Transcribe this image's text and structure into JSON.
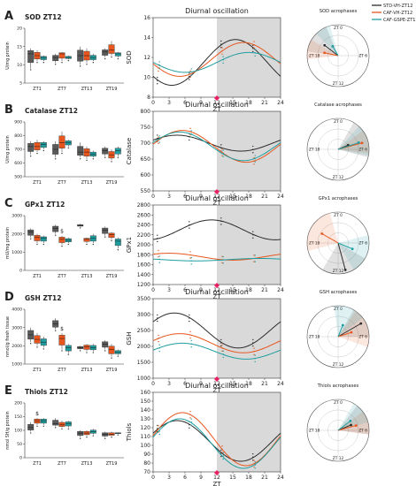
{
  "colors": {
    "std": "#2b2b2b",
    "caf": "#e8561e",
    "gspe": "#1f9ea0",
    "stdBox": "#5a5a5a",
    "shade": "#d9d9d9",
    "zt12": "#e91e63"
  },
  "legend": {
    "items": [
      {
        "label": "STD-VH-ZT12",
        "color": "#2b2b2b"
      },
      {
        "label": "CAF-VH-ZT12",
        "color": "#e8561e"
      },
      {
        "label": "CAF-GSPE-ZT12",
        "color": "#1f9ea0"
      }
    ]
  },
  "chart_data": [
    {
      "panel": "A",
      "title": "SOD ZT12",
      "type": "bar",
      "ylabel": "U/mg protein",
      "ylim": [
        5,
        20
      ],
      "yticks": [
        5,
        10,
        15,
        20
      ],
      "categories": [
        "ZT1",
        "ZT7",
        "ZT13",
        "ZT19"
      ],
      "series": [
        {
          "name": "STD-VH-ZT12",
          "values": [
            [
              9,
              13,
              14.5
            ],
            [
              10.5,
              12,
              13
            ],
            [
              10,
              12.5,
              15
            ],
            [
              12,
              13.5,
              14.5
            ]
          ]
        },
        {
          "name": "CAF-VH-ZT12",
          "values": [
            [
              11,
              12.5,
              14
            ],
            [
              11,
              13,
              13.5
            ],
            [
              10.5,
              12.5,
              14.5
            ],
            [
              12.5,
              14,
              16.5
            ]
          ]
        },
        {
          "name": "CAF-GSPE-ZT12",
          "values": [
            [
              11,
              12,
              12.5
            ],
            [
              11.5,
              12,
              12.5
            ],
            [
              11,
              12,
              13
            ],
            [
              12,
              13,
              13.5
            ]
          ]
        }
      ],
      "annotations": [],
      "osc": {
        "title": "Diurnal oscillation",
        "ylabel": "SOD",
        "xlabel": "ZT",
        "ylim": [
          8,
          16
        ],
        "yticks": [
          8,
          10,
          12,
          14,
          16
        ],
        "shade_from": 12,
        "curves": [
          {
            "name": "STD-VH-ZT12",
            "mesor": 11.5,
            "amp": 2.3,
            "peak": 15.5
          },
          {
            "name": "CAF-VH-ZT12",
            "mesor": 11.8,
            "amp": 1.7,
            "peak": 17.0
          },
          {
            "name": "CAF-GSPE-ZT12",
            "mesor": 11.5,
            "amp": 1.0,
            "peak": 18.0
          }
        ]
      },
      "polar": {
        "title": "SOD acrophases",
        "labels": [
          "ZT 0",
          "ZT 6",
          "ZT 12",
          "ZT 18"
        ],
        "vectors": [
          {
            "name": "STD-VH-ZT12",
            "zt": 20.5,
            "r": 0.55,
            "spread": 4
          },
          {
            "name": "CAF-VH-ZT12",
            "zt": 18.8,
            "r": 0.45,
            "spread": 2.5
          },
          {
            "name": "CAF-GSPE-ZT12",
            "zt": 22.0,
            "r": 0.35,
            "spread": 2
          }
        ]
      }
    },
    {
      "panel": "B",
      "title": "Catalase ZT12",
      "type": "bar",
      "ylabel": "U/mg protein",
      "ylim": [
        500,
        900
      ],
      "yticks": [
        500,
        600,
        700,
        800,
        900
      ],
      "categories": [
        "ZT1",
        "ZT7",
        "ZT13",
        "ZT19"
      ],
      "series": [
        {
          "name": "STD-VH-ZT12",
          "values": [
            [
              660,
              720,
              760
            ],
            [
              640,
              700,
              760
            ],
            [
              640,
              680,
              750
            ],
            [
              650,
              690,
              720
            ]
          ]
        },
        {
          "name": "CAF-VH-ZT12",
          "values": [
            [
              680,
              720,
              770
            ],
            [
              680,
              750,
              830
            ],
            [
              630,
              680,
              720
            ],
            [
              620,
              660,
              700
            ]
          ]
        },
        {
          "name": "CAF-GSPE-ZT12",
          "values": [
            [
              700,
              735,
              760
            ],
            [
              720,
              750,
              770
            ],
            [
              640,
              665,
              690
            ],
            [
              650,
              690,
              720
            ]
          ]
        }
      ],
      "annotations": [],
      "osc": {
        "title": "Diurnal oscillation",
        "ylabel": "Catalase",
        "xlabel": "ZT",
        "ylim": [
          550,
          800
        ],
        "yticks": [
          550,
          600,
          650,
          700,
          750,
          800
        ],
        "shade_from": 12,
        "curves": [
          {
            "name": "STD-VH-ZT12",
            "mesor": 700,
            "amp": 25,
            "peak": 4.5
          },
          {
            "name": "CAF-VH-ZT12",
            "mesor": 690,
            "amp": 50,
            "peak": 5.5
          },
          {
            "name": "CAF-GSPE-ZT12",
            "mesor": 690,
            "amp": 45,
            "peak": 5.0
          }
        ]
      },
      "polar": {
        "title": "Catalase acrophases",
        "labels": [
          "ZT 0",
          "ZT 6",
          "ZT 12",
          "ZT 18"
        ],
        "vectors": [
          {
            "name": "STD-VH-ZT12",
            "zt": 4.5,
            "r": 0.35,
            "spread": 5
          },
          {
            "name": "CAF-VH-ZT12",
            "zt": 5.0,
            "r": 0.8,
            "spread": 3
          },
          {
            "name": "CAF-GSPE-ZT12",
            "zt": 4.8,
            "r": 0.7,
            "spread": 4
          }
        ]
      }
    },
    {
      "panel": "C",
      "title": "GPx1 ZT12",
      "type": "bar",
      "ylabel": "mU/mg protein",
      "ylim": [
        0,
        3000
      ],
      "yticks": [
        0,
        1000,
        2000,
        3000
      ],
      "categories": [
        "ZT1",
        "ZT7",
        "ZT13",
        "ZT19"
      ],
      "series": [
        {
          "name": "STD-VH-ZT12",
          "values": [
            [
              1800,
              2100,
              2300
            ],
            [
              2000,
              2300,
              2500
            ],
            [
              2400,
              2450,
              2550
            ],
            [
              1900,
              2200,
              2400
            ]
          ]
        },
        {
          "name": "CAF-VH-ZT12",
          "values": [
            [
              1500,
              1800,
              2000
            ],
            [
              1400,
              1700,
              1900
            ],
            [
              1500,
              1700,
              1800
            ],
            [
              1700,
              1950,
              2100
            ]
          ]
        },
        {
          "name": "CAF-GSPE-ZT12",
          "values": [
            [
              1500,
              1750,
              1900
            ],
            [
              1500,
              1650,
              1800
            ],
            [
              1500,
              1750,
              2000
            ],
            [
              1200,
              1600,
              1800
            ]
          ]
        }
      ],
      "annotations": [
        {
          "text": "$",
          "group": 1,
          "series": 1
        }
      ],
      "osc": {
        "title": "Diurnal oscillation",
        "ylabel": "GPx1",
        "xlabel": "ZT",
        "ylim": [
          1200,
          2800
        ],
        "yticks": [
          1200,
          1400,
          1600,
          1800,
          2000,
          2200,
          2400,
          2600,
          2800
        ],
        "shade_from": 12,
        "curves": [
          {
            "name": "STD-VH-ZT12",
            "mesor": 2300,
            "amp": 200,
            "peak": 11.0
          },
          {
            "name": "CAF-VH-ZT12",
            "mesor": 1760,
            "amp": 70,
            "peak": 3.0
          },
          {
            "name": "CAF-GSPE-ZT12",
            "mesor": 1700,
            "amp": 25,
            "peak": 20.0
          }
        ]
      },
      "polar": {
        "title": "GPx1 acrophases",
        "labels": [
          "ZT 0",
          "ZT 6",
          "ZT 12",
          "ZT 18"
        ],
        "vectors": [
          {
            "name": "STD-VH-ZT12",
            "zt": 11.0,
            "r": 0.9,
            "spread": 6
          },
          {
            "name": "CAF-VH-ZT12",
            "zt": 20.0,
            "r": 0.6,
            "spread": 6
          },
          {
            "name": "CAF-GSPE-ZT12",
            "zt": 7.5,
            "r": 0.5,
            "spread": 5
          }
        ]
      }
    },
    {
      "panel": "D",
      "title": "GSH ZT12",
      "type": "bar",
      "ylabel": "nmol/g fresh tissue",
      "ylim": [
        1000,
        4000
      ],
      "yticks": [
        1000,
        2000,
        3000,
        4000
      ],
      "categories": [
        "ZT1",
        "ZT7",
        "ZT13",
        "ZT19"
      ],
      "series": [
        {
          "name": "STD-VH-ZT12",
          "values": [
            [
              2200,
              2600,
              3000
            ],
            [
              2900,
              3200,
              3500
            ],
            [
              1800,
              1900,
              2000
            ],
            [
              1800,
              2100,
              2300
            ]
          ]
        },
        {
          "name": "CAF-VH-ZT12",
          "values": [
            [
              2000,
              2350,
              2700
            ],
            [
              1800,
              2400,
              2700
            ],
            [
              1700,
              1950,
              2100
            ],
            [
              1400,
              1800,
              2100
            ]
          ]
        },
        {
          "name": "CAF-GSPE-ZT12",
          "values": [
            [
              1900,
              2200,
              2500
            ],
            [
              1600,
              1900,
              2100
            ],
            [
              1700,
              1900,
              2100
            ],
            [
              1500,
              1650,
              1800
            ]
          ]
        }
      ],
      "annotations": [
        {
          "text": "$",
          "group": 1,
          "series": 1
        }
      ],
      "osc": {
        "title": "Diurnal oscillation",
        "ylabel": "GSH",
        "xlabel": "ZT",
        "ylim": [
          1000,
          3500
        ],
        "yticks": [
          1000,
          1500,
          2000,
          2500,
          3000,
          3500
        ],
        "shade_from": 12,
        "curves": [
          {
            "name": "STD-VH-ZT12",
            "mesor": 2500,
            "amp": 550,
            "peak": 4.0
          },
          {
            "name": "CAF-VH-ZT12",
            "mesor": 2100,
            "amp": 300,
            "peak": 5.0
          },
          {
            "name": "CAF-GSPE-ZT12",
            "mesor": 1850,
            "amp": 250,
            "peak": 5.5
          }
        ]
      },
      "polar": {
        "title": "GSH acrophases",
        "labels": [
          "ZT 0",
          "ZT 6",
          "ZT 12",
          "ZT 18"
        ],
        "vectors": [
          {
            "name": "STD-VH-ZT12",
            "zt": 4.0,
            "r": 0.85,
            "spread": 4
          },
          {
            "name": "CAF-VH-ZT12",
            "zt": 4.8,
            "r": 0.45,
            "spread": 5
          },
          {
            "name": "CAF-GSPE-ZT12",
            "zt": 1.5,
            "r": 0.4,
            "spread": 4
          }
        ]
      }
    },
    {
      "panel": "E",
      "title": "Thiols ZT12",
      "type": "bar",
      "ylabel": "nmol SH/g protein",
      "ylim": [
        0,
        200
      ],
      "yticks": [
        0,
        50,
        100,
        150,
        200
      ],
      "categories": [
        "ZT1",
        "ZT7",
        "ZT13",
        "ZT19"
      ],
      "series": [
        {
          "name": "STD-VH-ZT12",
          "values": [
            [
              95,
              110,
              130
            ],
            [
              115,
              125,
              145
            ],
            [
              75,
              90,
              100
            ],
            [
              75,
              85,
              95
            ]
          ]
        },
        {
          "name": "CAF-VH-ZT12",
          "values": [
            [
              120,
              135,
              145
            ],
            [
              110,
              120,
              135
            ],
            [
              80,
              90,
              100
            ],
            [
              80,
              85,
              95
            ]
          ]
        },
        {
          "name": "CAF-GSPE-ZT12",
          "values": [
            [
              120,
              135,
              145
            ],
            [
              110,
              125,
              135
            ],
            [
              85,
              95,
              105
            ],
            [
              88,
              90,
              92
            ]
          ]
        }
      ],
      "annotations": [
        {
          "text": "$",
          "group": 0,
          "series": 1
        }
      ],
      "osc": {
        "title": "Diurnal oscillation",
        "ylabel": "Thiols",
        "xlabel": "ZT",
        "ylim": [
          70,
          160
        ],
        "yticks": [
          70,
          80,
          90,
          100,
          110,
          120,
          130,
          140,
          150,
          160
        ],
        "shade_from": 12,
        "curves": [
          {
            "name": "STD-VH-ZT12",
            "mesor": 105,
            "amp": 23,
            "peak": 4.5
          },
          {
            "name": "CAF-VH-ZT12",
            "mesor": 107,
            "amp": 30,
            "peak": 5.5
          },
          {
            "name": "CAF-GSPE-ZT12",
            "mesor": 102,
            "amp": 28,
            "peak": 5.0
          }
        ]
      },
      "polar": {
        "title": "Thiols acrophases",
        "labels": [
          "ZT 0",
          "ZT 6",
          "ZT 12",
          "ZT 18"
        ],
        "vectors": [
          {
            "name": "STD-VH-ZT12",
            "zt": 4.5,
            "r": 0.45,
            "spread": 4
          },
          {
            "name": "CAF-VH-ZT12",
            "zt": 5.0,
            "r": 0.6,
            "spread": 3
          },
          {
            "name": "CAF-GSPE-ZT12",
            "zt": 3.5,
            "r": 0.5,
            "spread": 3
          }
        ]
      }
    }
  ]
}
